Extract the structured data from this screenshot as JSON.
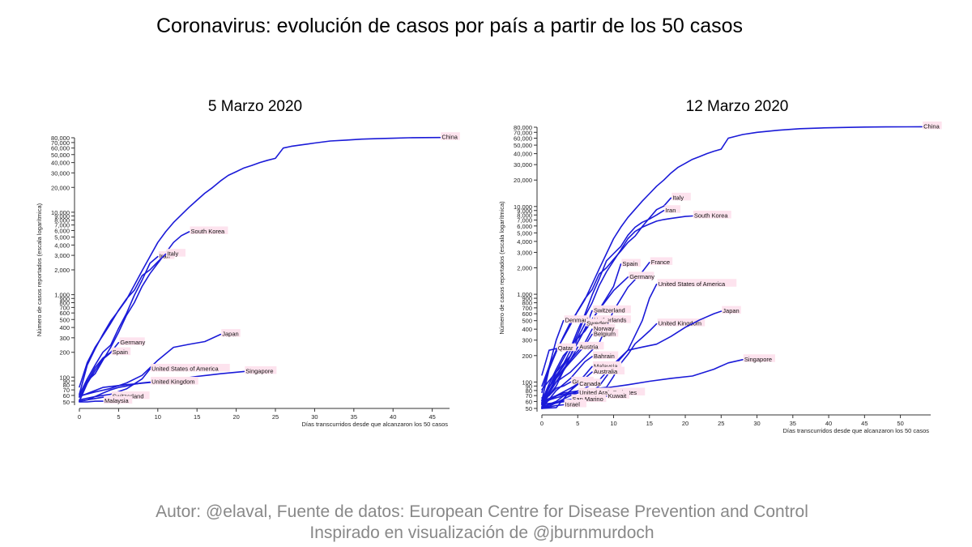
{
  "title": "Coronavirus: evolución de casos por país a partir de los 50 casos",
  "credit_line1": "Autor: @elaval, Fuente de datos: European Centre for Disease Prevention and Control",
  "credit_line2": "Inspirado en visualización de @jburnmurdoch",
  "colors": {
    "line": "#1a1ad8",
    "label_bg": "#fde3ee",
    "axis": "#333333"
  },
  "chart_data": [
    {
      "type": "line",
      "title": "5 Marzo 2020",
      "xlabel": "Días transcurridos desde que alcanzaron los 50 casos",
      "ylabel": "Número de casos reportados (escala logarítmica)",
      "yscale": "log",
      "xlim": [
        0,
        47
      ],
      "ylim": [
        50,
        80000
      ],
      "xticks": [
        0,
        5,
        10,
        15,
        20,
        25,
        30,
        35,
        40,
        45
      ],
      "yticks": [
        50,
        60,
        70,
        80,
        90,
        100,
        200,
        300,
        400,
        500,
        600,
        700,
        800,
        900,
        1000,
        2000,
        3000,
        4000,
        5000,
        6000,
        7000,
        8000,
        9000,
        10000,
        20000,
        30000,
        40000,
        50000,
        60000,
        70000,
        80000
      ],
      "series": [
        {
          "name": "China",
          "x": [
            0,
            1,
            2,
            3,
            4,
            5,
            6,
            7,
            8,
            9,
            10,
            11,
            12,
            13,
            14,
            15,
            16,
            17,
            18,
            19,
            20,
            21,
            22,
            23,
            24,
            25,
            26,
            27,
            28,
            30,
            32,
            34,
            36,
            38,
            40,
            42,
            44,
            46
          ],
          "y": [
            62,
            140,
            220,
            330,
            480,
            640,
            870,
            1300,
            1950,
            2900,
            4300,
            5800,
            7500,
            9300,
            11500,
            14000,
            17000,
            20000,
            24000,
            28000,
            31000,
            34500,
            37000,
            40000,
            42600,
            45000,
            60000,
            63000,
            65000,
            69000,
            73000,
            75000,
            77000,
            78000,
            79000,
            80000,
            80400,
            80500
          ]
        },
        {
          "name": "South Korea",
          "x": [
            0,
            1,
            2,
            3,
            4,
            5,
            6,
            7,
            8,
            9,
            10,
            11,
            12,
            13,
            14
          ],
          "y": [
            51,
            90,
            110,
            160,
            230,
            350,
            560,
            800,
            1260,
            1800,
            2400,
            3200,
            4300,
            5200,
            5800
          ]
        },
        {
          "name": "Iran",
          "x": [
            0,
            1,
            2,
            3,
            4,
            5,
            6,
            7,
            8,
            9,
            10
          ],
          "y": [
            61,
            95,
            140,
            200,
            245,
            390,
            590,
            980,
            1500,
            2400,
            2900
          ]
        },
        {
          "name": "Italy",
          "x": [
            0,
            1,
            2,
            3,
            4,
            5,
            6,
            7,
            8,
            9,
            10,
            11
          ],
          "y": [
            76,
            150,
            230,
            320,
            450,
            650,
            890,
            1130,
            1700,
            2000,
            2500,
            3100
          ]
        },
        {
          "name": "Germany",
          "x": [
            0,
            1,
            2,
            3,
            4,
            5
          ],
          "y": [
            57,
            88,
            130,
            170,
            200,
            262
          ]
        },
        {
          "name": "Spain",
          "x": [
            0,
            1,
            2,
            3,
            4
          ],
          "y": [
            51,
            84,
            120,
            165,
            198
          ]
        },
        {
          "name": "Japan",
          "x": [
            0,
            2,
            4,
            6,
            8,
            10,
            12,
            14,
            16,
            18
          ],
          "y": [
            59,
            66,
            73,
            85,
            105,
            160,
            230,
            250,
            270,
            330
          ]
        },
        {
          "name": "United States of America",
          "x": [
            0,
            2,
            4,
            6,
            8,
            9
          ],
          "y": [
            53,
            58,
            62,
            72,
            95,
            125
          ]
        },
        {
          "name": "Singapore",
          "x": [
            0,
            3,
            6,
            9,
            12,
            15,
            18,
            21
          ],
          "y": [
            58,
            75,
            81,
            86,
            93,
            102,
            110,
            117
          ]
        },
        {
          "name": "United Kingdom",
          "x": [
            0,
            1,
            2,
            3,
            4,
            5,
            6,
            7,
            8,
            9
          ],
          "y": [
            51,
            53,
            58,
            64,
            70,
            75,
            78,
            82,
            85,
            87
          ]
        },
        {
          "name": "Switzerland",
          "x": [
            0,
            1,
            2,
            3,
            4
          ],
          "y": [
            51,
            53,
            55,
            57,
            58
          ]
        },
        {
          "name": "Malaysia",
          "x": [
            0,
            1,
            2,
            3
          ],
          "y": [
            50,
            50,
            51,
            51
          ]
        }
      ]
    },
    {
      "type": "line",
      "title": "12 Marzo 2020",
      "xlabel": "Días transcurridos desde que alcanzaron los 50 casos",
      "ylabel": "Número de casos reportados (escala logarítmica)",
      "yscale": "log",
      "xlim": [
        0,
        54
      ],
      "ylim": [
        50,
        80000
      ],
      "xticks": [
        0,
        5,
        10,
        15,
        20,
        25,
        30,
        35,
        40,
        45,
        50
      ],
      "yticks": [
        50,
        60,
        70,
        80,
        90,
        100,
        200,
        300,
        400,
        500,
        600,
        700,
        800,
        900,
        1000,
        2000,
        3000,
        4000,
        5000,
        6000,
        7000,
        8000,
        9000,
        10000,
        20000,
        30000,
        40000,
        50000,
        60000,
        70000,
        80000
      ],
      "series": [
        {
          "name": "China",
          "x": [
            0,
            1,
            2,
            3,
            4,
            5,
            6,
            7,
            8,
            9,
            10,
            11,
            12,
            13,
            14,
            15,
            16,
            17,
            18,
            19,
            20,
            21,
            22,
            23,
            24,
            25,
            26,
            28,
            30,
            33,
            36,
            39,
            42,
            45,
            48,
            51,
            53
          ],
          "y": [
            62,
            140,
            220,
            330,
            480,
            640,
            870,
            1300,
            1950,
            2900,
            4300,
            5800,
            7500,
            9300,
            11500,
            14000,
            17000,
            20000,
            24000,
            28000,
            31000,
            34500,
            37000,
            40000,
            42600,
            45000,
            60000,
            66000,
            70000,
            74000,
            77000,
            78500,
            79500,
            80300,
            80700,
            80900,
            81000
          ]
        },
        {
          "name": "Italy",
          "x": [
            0,
            1,
            2,
            3,
            4,
            5,
            6,
            7,
            8,
            9,
            10,
            11,
            12,
            13,
            14,
            15,
            16,
            17,
            18
          ],
          "y": [
            76,
            150,
            230,
            320,
            450,
            650,
            890,
            1130,
            1700,
            2000,
            2500,
            3100,
            3900,
            4600,
            5900,
            7400,
            9200,
            10100,
            12500
          ]
        },
        {
          "name": "Iran",
          "x": [
            0,
            1,
            2,
            3,
            4,
            5,
            6,
            7,
            8,
            9,
            10,
            11,
            12,
            13,
            14,
            15,
            16,
            17
          ],
          "y": [
            61,
            95,
            140,
            200,
            245,
            390,
            590,
            980,
            1500,
            2400,
            2900,
            3500,
            4700,
            5800,
            6600,
            7200,
            8000,
            9000
          ]
        },
        {
          "name": "South Korea",
          "x": [
            0,
            1,
            2,
            3,
            4,
            5,
            6,
            7,
            8,
            9,
            10,
            11,
            12,
            13,
            14,
            15,
            16,
            17,
            18,
            19,
            20,
            21
          ],
          "y": [
            51,
            90,
            110,
            160,
            230,
            350,
            560,
            800,
            1260,
            1800,
            2400,
            3200,
            4300,
            5200,
            5800,
            6300,
            6800,
            7100,
            7300,
            7500,
            7700,
            7800
          ]
        },
        {
          "name": "France",
          "x": [
            0,
            2,
            4,
            6,
            8,
            10,
            12,
            14,
            15
          ],
          "y": [
            57,
            100,
            130,
            190,
            280,
            650,
            1200,
            1800,
            2300
          ]
        },
        {
          "name": "Spain",
          "x": [
            0,
            2,
            4,
            6,
            8,
            10,
            11
          ],
          "y": [
            51,
            115,
            200,
            400,
            670,
            1230,
            2200
          ]
        },
        {
          "name": "Germany",
          "x": [
            0,
            2,
            4,
            6,
            8,
            10,
            12
          ],
          "y": [
            57,
            130,
            200,
            400,
            670,
            1100,
            1570
          ]
        },
        {
          "name": "United States of America",
          "x": [
            0,
            3,
            6,
            8,
            10,
            12,
            14,
            15,
            16
          ],
          "y": [
            53,
            60,
            70,
            90,
            150,
            230,
            500,
            900,
            1300
          ]
        },
        {
          "name": "Switzerland",
          "x": [
            0,
            2,
            4,
            6,
            7
          ],
          "y": [
            56,
            90,
            200,
            400,
            650
          ]
        },
        {
          "name": "Denmark",
          "x": [
            0,
            1,
            2,
            3
          ],
          "y": [
            90,
            150,
            300,
            500
          ]
        },
        {
          "name": "Netherlands",
          "x": [
            0,
            2,
            4,
            6,
            7
          ],
          "y": [
            82,
            130,
            260,
            380,
            500
          ]
        },
        {
          "name": "Sweden",
          "x": [
            0,
            2,
            4,
            5,
            6
          ],
          "y": [
            61,
            120,
            200,
            320,
            460
          ]
        },
        {
          "name": "United Kingdom",
          "x": [
            0,
            1,
            2,
            3,
            4,
            5,
            6,
            7,
            8,
            9,
            10,
            11,
            12,
            13,
            14,
            15,
            16
          ],
          "y": [
            51,
            53,
            58,
            64,
            70,
            75,
            78,
            82,
            85,
            87,
            116,
            163,
            206,
            273,
            321,
            382,
            460
          ]
        },
        {
          "name": "Belgium",
          "x": [
            0,
            2,
            4,
            6,
            7
          ],
          "y": [
            50,
            110,
            170,
            260,
            350
          ]
        },
        {
          "name": "Norway",
          "x": [
            0,
            2,
            4,
            6,
            7
          ],
          "y": [
            56,
            110,
            180,
            280,
            400
          ]
        },
        {
          "name": "Austria",
          "x": [
            0,
            2,
            4,
            5
          ],
          "y": [
            55,
            100,
            180,
            250
          ]
        },
        {
          "name": "Qatar",
          "x": [
            0,
            1,
            2
          ],
          "y": [
            120,
            230,
            240
          ]
        },
        {
          "name": "Japan",
          "x": [
            0,
            2,
            4,
            6,
            8,
            10,
            12,
            14,
            16,
            18,
            20,
            22,
            24,
            25
          ],
          "y": [
            59,
            66,
            73,
            85,
            105,
            160,
            230,
            250,
            270,
            330,
            420,
            510,
            600,
            640
          ]
        },
        {
          "name": "Bahrain",
          "x": [
            0,
            2,
            4,
            6,
            7
          ],
          "y": [
            50,
            80,
            110,
            170,
            195
          ]
        },
        {
          "name": "Malaysia",
          "x": [
            0,
            2,
            4,
            6,
            7
          ],
          "y": [
            50,
            51,
            80,
            120,
            150
          ]
        },
        {
          "name": "Australia",
          "x": [
            0,
            2,
            4,
            6,
            7
          ],
          "y": [
            52,
            60,
            80,
            110,
            130
          ]
        },
        {
          "name": "Greece",
          "x": [
            0,
            1,
            2,
            3,
            4
          ],
          "y": [
            66,
            70,
            85,
            90,
            100
          ]
        },
        {
          "name": "Canada",
          "x": [
            0,
            2,
            4,
            5
          ],
          "y": [
            55,
            70,
            85,
            95
          ]
        },
        {
          "name": "Singapore",
          "x": [
            0,
            3,
            6,
            9,
            12,
            15,
            18,
            21,
            24,
            26,
            28
          ],
          "y": [
            58,
            75,
            81,
            86,
            93,
            102,
            110,
            117,
            140,
            165,
            180
          ]
        },
        {
          "name": "United Arab Emirates",
          "x": [
            0,
            1,
            2,
            3,
            4,
            5
          ],
          "y": [
            59,
            65,
            70,
            72,
            74,
            75
          ]
        },
        {
          "name": "Kuwait",
          "x": [
            0,
            2,
            4,
            6,
            8,
            9
          ],
          "y": [
            56,
            58,
            61,
            64,
            67,
            69
          ]
        },
        {
          "name": "San Marino",
          "x": [
            0,
            1,
            2,
            3,
            4
          ],
          "y": [
            51,
            55,
            58,
            62,
            63
          ]
        },
        {
          "name": "Israel",
          "x": [
            0,
            1,
            2,
            3
          ],
          "y": [
            50,
            52,
            54,
            55
          ]
        }
      ]
    }
  ]
}
